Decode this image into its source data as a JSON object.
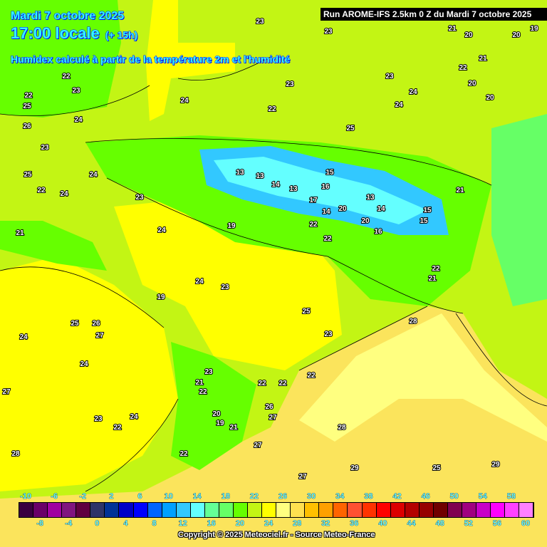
{
  "header": {
    "date": "Mardi 7 octobre 2025",
    "time": "17:00 locale",
    "lead": "(+ 15h)",
    "subtitle": "Humidex calculé à partir de la température 2m et l'humidité",
    "run": "Run AROME-IFS 2.5km 0 Z du Mardi 7 octobre 2025"
  },
  "colorbar": {
    "top_labels": [
      "-10",
      "-6",
      "-2",
      "2",
      "6",
      "10",
      "14",
      "18",
      "22",
      "26",
      "30",
      "34",
      "38",
      "42",
      "46",
      "50",
      "54",
      "58"
    ],
    "bottom_labels": [
      "-8",
      "-4",
      "0",
      "4",
      "8",
      "12",
      "16",
      "20",
      "24",
      "28",
      "32",
      "36",
      "40",
      "44",
      "48",
      "52",
      "56",
      "60"
    ],
    "colors": [
      "#3a0040",
      "#6a0068",
      "#a000a0",
      "#80157f",
      "#600040",
      "#2e3468",
      "#003296",
      "#0000c8",
      "#0000ff",
      "#0064ff",
      "#00a0ff",
      "#32c8ff",
      "#64ffff",
      "#64ff96",
      "#66ff66",
      "#66ff00",
      "#c3f514",
      "#ffff00",
      "#ffff80",
      "#ffe050",
      "#ffc000",
      "#ffa000",
      "#ff6400",
      "#ff5032",
      "#ff3200",
      "#ff0000",
      "#dc0000",
      "#b40000",
      "#960000",
      "#700000",
      "#800050",
      "#a00080",
      "#c800c8",
      "#ff00ff",
      "#ff40ff",
      "#ff80ff"
    ]
  },
  "copyright": "Copyright © 2025 Meteociel.fr - Source Meteo-France",
  "map_labels": [
    "23",
    "23",
    "21",
    "20",
    "19",
    "20",
    "22",
    "21",
    "22",
    "20",
    "23",
    "23",
    "24",
    "24",
    "22",
    "23",
    "22",
    "24",
    "25",
    "26",
    "25",
    "23",
    "24",
    "22",
    "25",
    "24",
    "23",
    "21",
    "13",
    "13",
    "14",
    "13",
    "15",
    "16",
    "17",
    "14",
    "20",
    "13",
    "14",
    "15",
    "15",
    "16",
    "20",
    "19",
    "22",
    "22",
    "21",
    "20",
    "22",
    "21",
    "24",
    "24",
    "23",
    "24",
    "25",
    "19",
    "25",
    "26",
    "27",
    "24",
    "23",
    "24",
    "27",
    "23",
    "21",
    "22",
    "24",
    "23",
    "22",
    "22",
    "22",
    "22",
    "20",
    "19",
    "21",
    "26",
    "27",
    "27",
    "22",
    "28",
    "28",
    "29",
    "28",
    "27",
    "25",
    "29"
  ],
  "map_colors": {
    "green": "#66ff00",
    "lime": "#c3f514",
    "yellow": "#ffff00",
    "pale": "#ffff80",
    "warm": "#fbe45c",
    "sea": "#66ff66",
    "cyan": "#64ffff",
    "blue": "#32c8ff",
    "mint": "#64ff96"
  }
}
